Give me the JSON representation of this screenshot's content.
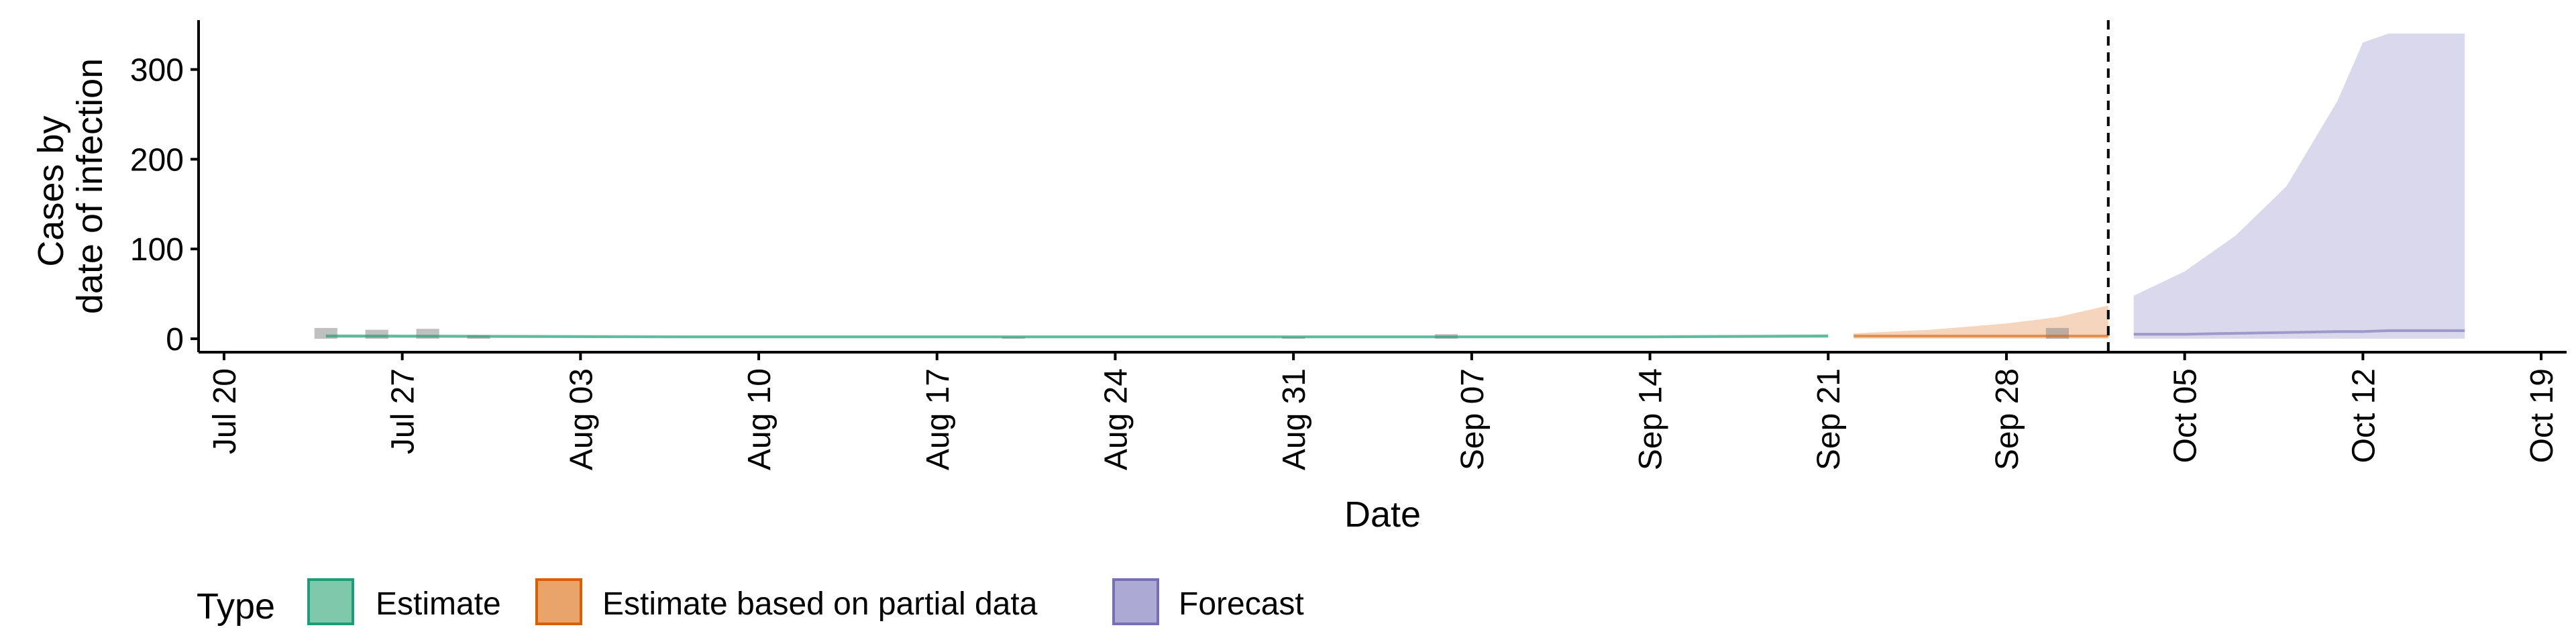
{
  "chart_data": {
    "type": "area",
    "xlabel": "Date",
    "ylabel_lines": [
      "Cases by",
      "date of infection"
    ],
    "ylim": [
      -15,
      355
    ],
    "y_ticks": [
      0,
      100,
      200,
      300
    ],
    "x_range": [
      "2020-07-19",
      "2020-10-20"
    ],
    "x_ticks": [
      {
        "date": "2020-07-20",
        "label": "Jul 20"
      },
      {
        "date": "2020-07-27",
        "label": "Jul 27"
      },
      {
        "date": "2020-08-03",
        "label": "Aug 03"
      },
      {
        "date": "2020-08-10",
        "label": "Aug 10"
      },
      {
        "date": "2020-08-17",
        "label": "Aug 17"
      },
      {
        "date": "2020-08-24",
        "label": "Aug 24"
      },
      {
        "date": "2020-08-31",
        "label": "Aug 31"
      },
      {
        "date": "2020-09-07",
        "label": "Sep 07"
      },
      {
        "date": "2020-09-14",
        "label": "Sep 14"
      },
      {
        "date": "2020-09-21",
        "label": "Sep 21"
      },
      {
        "date": "2020-09-28",
        "label": "Sep 28"
      },
      {
        "date": "2020-10-05",
        "label": "Oct 05"
      },
      {
        "date": "2020-10-12",
        "label": "Oct 12"
      },
      {
        "date": "2020-10-19",
        "label": "Oct 19"
      }
    ],
    "forecast_start_line": "2020-10-02",
    "grid": false,
    "legend": {
      "title": "Type",
      "placement": "bottom",
      "items": [
        {
          "label": "Estimate",
          "fill": "#7fc8ab",
          "stroke": "#1b9e77"
        },
        {
          "label": "Estimate based on partial data",
          "fill": "#e9a46c",
          "stroke": "#d95f02"
        },
        {
          "label": "Forecast",
          "fill": "#aca9d4",
          "stroke": "#7570b3"
        }
      ]
    },
    "observed_cases": [
      {
        "date": "2020-07-24",
        "value": 12
      },
      {
        "date": "2020-07-26",
        "value": 10
      },
      {
        "date": "2020-07-28",
        "value": 11
      },
      {
        "date": "2020-07-30",
        "value": 4
      },
      {
        "date": "2020-08-20",
        "value": 2
      },
      {
        "date": "2020-08-31",
        "value": 2
      },
      {
        "date": "2020-09-06",
        "value": 5
      },
      {
        "date": "2020-09-30",
        "value": 12
      }
    ],
    "series": [
      {
        "type": "Estimate",
        "x": [
          "2020-07-24",
          "2020-08-07",
          "2020-08-21",
          "2020-09-04",
          "2020-09-14",
          "2020-09-21"
        ],
        "lower": [
          1,
          1,
          1,
          1,
          1,
          1
        ],
        "upper": [
          5,
          4,
          4,
          4,
          4,
          5
        ],
        "median": [
          3,
          2,
          2,
          2,
          2,
          3
        ]
      },
      {
        "type": "Estimate based on partial data",
        "x": [
          "2020-09-22",
          "2020-09-25",
          "2020-09-28",
          "2020-09-30",
          "2020-10-02"
        ],
        "lower": [
          0,
          0,
          0,
          0,
          0
        ],
        "upper": [
          6,
          10,
          17,
          24,
          37
        ],
        "median": [
          3,
          3,
          3,
          3,
          3
        ]
      },
      {
        "type": "Forecast",
        "x": [
          "2020-10-03",
          "2020-10-05",
          "2020-10-07",
          "2020-10-09",
          "2020-10-11",
          "2020-10-12",
          "2020-10-13",
          "2020-10-16"
        ],
        "lower": [
          0,
          0,
          0,
          0,
          0,
          0,
          0,
          0
        ],
        "upper": [
          48,
          75,
          115,
          170,
          265,
          330,
          340,
          340
        ],
        "median": [
          5,
          5,
          6,
          7,
          8,
          8,
          9,
          9
        ]
      }
    ]
  }
}
